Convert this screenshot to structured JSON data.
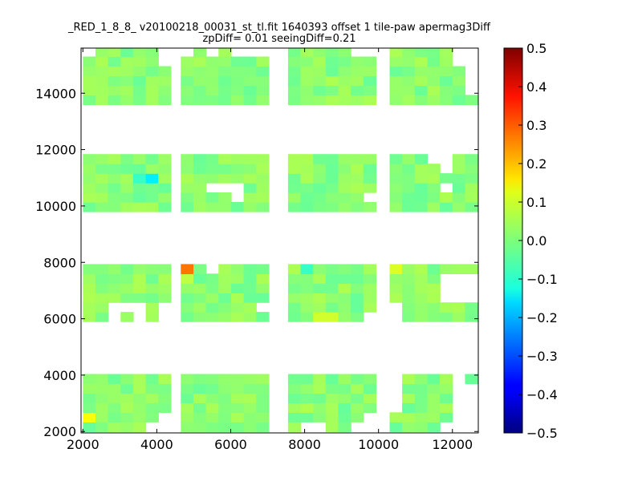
{
  "chart_data": {
    "type": "heatmap",
    "title_lines": [
      "_RED_1_8_8_ v20100218_00031_st_tl.fit 1640393 offset 1 tile-paw apermag3Diff",
      "zpDiff= 0.01 seeingDiff=0.21"
    ],
    "xlabel": "",
    "ylabel": "",
    "xlim": [
      1950,
      12700
    ],
    "ylim": [
      1950,
      15600
    ],
    "x_ticks": [
      2000,
      4000,
      6000,
      8000,
      10000,
      12000
    ],
    "y_ticks": [
      2000,
      4000,
      6000,
      8000,
      10000,
      12000,
      14000
    ],
    "cell_size": 340,
    "colormap": "jet",
    "colorbar": {
      "min": -0.5,
      "max": 0.5,
      "ticks": [
        "0.5",
        "0.4",
        "0.3",
        "0.2",
        "0.1",
        "0.0",
        "−0.1",
        "−0.2",
        "−0.3",
        "−0.4",
        "−0.5"
      ]
    },
    "colors": {
      "background": "#ffffff",
      "axes": "#000000"
    },
    "detector_blocks": [
      {
        "x": [
          2000,
          4350
        ],
        "y": [
          2000,
          4100
        ]
      },
      {
        "x": [
          4650,
          6950
        ],
        "y": [
          2000,
          4100
        ]
      },
      {
        "x": [
          7550,
          10000
        ],
        "y": [
          2000,
          4100
        ]
      },
      {
        "x": [
          10300,
          12700
        ],
        "y": [
          2000,
          4100
        ]
      },
      {
        "x": [
          2000,
          4350
        ],
        "y": [
          5900,
          7950
        ]
      },
      {
        "x": [
          4650,
          6950
        ],
        "y": [
          5900,
          7950
        ]
      },
      {
        "x": [
          7550,
          10000
        ],
        "y": [
          5900,
          7950
        ]
      },
      {
        "x": [
          10300,
          12700
        ],
        "y": [
          5900,
          7950
        ]
      },
      {
        "x": [
          2000,
          4350
        ],
        "y": [
          9800,
          11900
        ]
      },
      {
        "x": [
          4650,
          6950
        ],
        "y": [
          9800,
          11900
        ]
      },
      {
        "x": [
          7550,
          10000
        ],
        "y": [
          9800,
          11900
        ]
      },
      {
        "x": [
          10300,
          12700
        ],
        "y": [
          9800,
          11900
        ]
      },
      {
        "x": [
          2000,
          4350
        ],
        "y": [
          13600,
          15600
        ]
      },
      {
        "x": [
          4650,
          6950
        ],
        "y": [
          13600,
          15600
        ]
      },
      {
        "x": [
          7550,
          10000
        ],
        "y": [
          13600,
          15600
        ]
      },
      {
        "x": [
          10300,
          12700
        ],
        "y": [
          13600,
          15600
        ]
      }
    ],
    "default_value": 0.01,
    "value_spread": 0.035,
    "highlight_cells": [
      {
        "x": 4900,
        "y": 7800,
        "value": 0.26
      },
      {
        "x": 4900,
        "y": 7460,
        "value": 0.06
      },
      {
        "x": 3900,
        "y": 11050,
        "value": -0.14
      },
      {
        "x": 8580,
        "y": 6000,
        "value": 0.08
      },
      {
        "x": 10450,
        "y": 7800,
        "value": 0.09
      },
      {
        "x": 2200,
        "y": 2550,
        "value": 0.12
      },
      {
        "x": 8100,
        "y": 7800,
        "value": -0.07
      },
      {
        "x": 6300,
        "y": 11900,
        "value": -0.06
      },
      {
        "x": 6800,
        "y": 11900,
        "value": -0.07
      },
      {
        "x": 3600,
        "y": 11050,
        "value": -0.07
      }
    ],
    "missing_cells": [
      {
        "x": 2200,
        "y": 11900
      },
      {
        "x": 2900,
        "y": 11900
      },
      {
        "x": 3300,
        "y": 11900
      },
      {
        "x": 3900,
        "y": 11900
      },
      {
        "x": 4600,
        "y": 11900
      },
      {
        "x": 4600,
        "y": 11550
      },
      {
        "x": 5600,
        "y": 10700
      },
      {
        "x": 5900,
        "y": 10700
      },
      {
        "x": 6200,
        "y": 10700
      },
      {
        "x": 6200,
        "y": 10350
      },
      {
        "x": 7200,
        "y": 11550
      },
      {
        "x": 8800,
        "y": 11900
      },
      {
        "x": 9100,
        "y": 11900
      },
      {
        "x": 9400,
        "y": 11900
      },
      {
        "x": 9800,
        "y": 11900
      },
      {
        "x": 9800,
        "y": 10350
      },
      {
        "x": 10100,
        "y": 10700
      },
      {
        "x": 11600,
        "y": 11900
      },
      {
        "x": 11600,
        "y": 11550
      },
      {
        "x": 11950,
        "y": 11550
      },
      {
        "x": 11950,
        "y": 11200
      },
      {
        "x": 11950,
        "y": 10700
      },
      {
        "x": 10100,
        "y": 11900
      },
      {
        "x": 10100,
        "y": 11550
      },
      {
        "x": 3000,
        "y": 6350
      },
      {
        "x": 3300,
        "y": 6350
      },
      {
        "x": 3600,
        "y": 6350
      },
      {
        "x": 3600,
        "y": 6000
      },
      {
        "x": 3000,
        "y": 6000
      },
      {
        "x": 4350,
        "y": 6350
      },
      {
        "x": 4350,
        "y": 6000
      },
      {
        "x": 6900,
        "y": 6350
      },
      {
        "x": 7250,
        "y": 6350
      },
      {
        "x": 5600,
        "y": 7800
      },
      {
        "x": 4600,
        "y": 7800
      },
      {
        "x": 10100,
        "y": 7800
      },
      {
        "x": 10100,
        "y": 7450
      },
      {
        "x": 10100,
        "y": 7100
      },
      {
        "x": 9700,
        "y": 6000
      },
      {
        "x": 11850,
        "y": 7450
      },
      {
        "x": 12200,
        "y": 7450
      },
      {
        "x": 12550,
        "y": 7450
      },
      {
        "x": 11850,
        "y": 7100
      },
      {
        "x": 12200,
        "y": 7100
      },
      {
        "x": 12550,
        "y": 7100
      },
      {
        "x": 11850,
        "y": 6700
      },
      {
        "x": 12200,
        "y": 6700
      },
      {
        "x": 12550,
        "y": 6700
      },
      {
        "x": 10450,
        "y": 6350
      },
      {
        "x": 10450,
        "y": 6000
      },
      {
        "x": 2200,
        "y": 15450
      },
      {
        "x": 4350,
        "y": 15450
      },
      {
        "x": 4350,
        "y": 15100
      },
      {
        "x": 4900,
        "y": 15450
      },
      {
        "x": 5600,
        "y": 15450
      },
      {
        "x": 6200,
        "y": 15450
      },
      {
        "x": 6550,
        "y": 15450
      },
      {
        "x": 6900,
        "y": 15450
      },
      {
        "x": 9400,
        "y": 15450
      },
      {
        "x": 9800,
        "y": 15450
      },
      {
        "x": 10100,
        "y": 15450
      },
      {
        "x": 10100,
        "y": 15100
      },
      {
        "x": 10100,
        "y": 14700
      },
      {
        "x": 10100,
        "y": 14350
      },
      {
        "x": 12200,
        "y": 15450
      },
      {
        "x": 12200,
        "y": 15100
      },
      {
        "x": 12550,
        "y": 15450
      },
      {
        "x": 12550,
        "y": 15100
      },
      {
        "x": 12550,
        "y": 14700
      },
      {
        "x": 12550,
        "y": 14350
      },
      {
        "x": 12550,
        "y": 14000
      },
      {
        "x": 4350,
        "y": 2550
      },
      {
        "x": 4350,
        "y": 2200
      },
      {
        "x": 3950,
        "y": 2200
      },
      {
        "x": 8000,
        "y": 2200
      },
      {
        "x": 8400,
        "y": 2200
      },
      {
        "x": 9400,
        "y": 2200
      },
      {
        "x": 9800,
        "y": 2200
      },
      {
        "x": 9800,
        "y": 2550
      },
      {
        "x": 10100,
        "y": 2550
      },
      {
        "x": 10100,
        "y": 2900
      },
      {
        "x": 10100,
        "y": 3250
      },
      {
        "x": 10100,
        "y": 3600
      },
      {
        "x": 10100,
        "y": 3950
      },
      {
        "x": 10450,
        "y": 2900
      },
      {
        "x": 10450,
        "y": 3250
      },
      {
        "x": 10450,
        "y": 3600
      },
      {
        "x": 10450,
        "y": 3950
      },
      {
        "x": 11950,
        "y": 2200
      },
      {
        "x": 12200,
        "y": 2200
      },
      {
        "x": 12550,
        "y": 2200
      },
      {
        "x": 12200,
        "y": 2550
      },
      {
        "x": 12550,
        "y": 2550
      },
      {
        "x": 12200,
        "y": 2900
      },
      {
        "x": 12550,
        "y": 2900
      },
      {
        "x": 12200,
        "y": 3250
      },
      {
        "x": 12550,
        "y": 3250
      },
      {
        "x": 12200,
        "y": 3600
      },
      {
        "x": 12550,
        "y": 3600
      },
      {
        "x": 12200,
        "y": 3950
      }
    ]
  }
}
